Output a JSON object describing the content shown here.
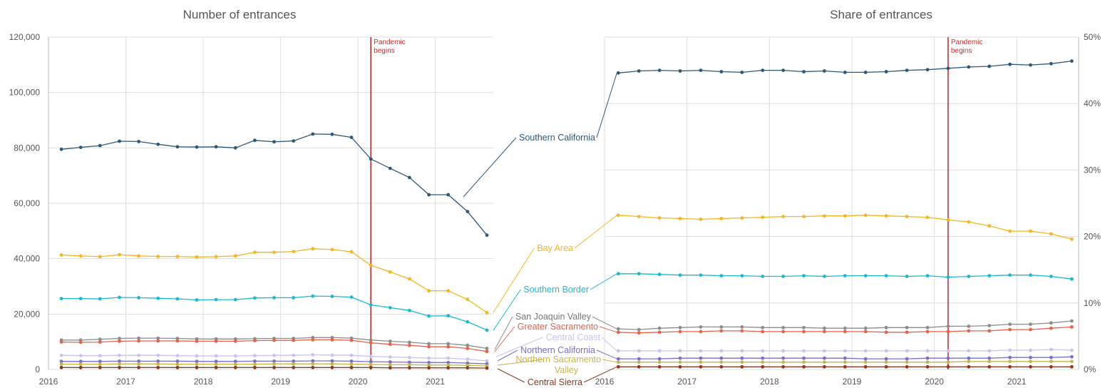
{
  "chart_data": [
    {
      "type": "line",
      "title": "Number of entrances",
      "x_ticks": [
        "2016",
        "2017",
        "2018",
        "2019",
        "2020",
        "2021"
      ],
      "y_ticks": [
        "0",
        "20,000",
        "40,000",
        "60,000",
        "80,000",
        "100,000",
        "120,000"
      ],
      "ylim": [
        0,
        120000
      ],
      "xlim": [
        "2016-01",
        "2021-10"
      ],
      "x": [
        "2016-03",
        "2016-06",
        "2016-09",
        "2016-12",
        "2017-03",
        "2017-06",
        "2017-09",
        "2017-12",
        "2018-03",
        "2018-06",
        "2018-09",
        "2018-12",
        "2019-03",
        "2019-06",
        "2019-09",
        "2019-12",
        "2020-03",
        "2020-06",
        "2020-09",
        "2020-12",
        "2021-03",
        "2021-06",
        "2021-09"
      ],
      "annotation": {
        "text": [
          "Pandemic",
          "begins"
        ],
        "x": "2020-03",
        "color": "#d62728"
      },
      "series": [
        {
          "name": "Southern California",
          "color": "#2d5878",
          "values": [
            79500,
            80200,
            80800,
            82400,
            82300,
            81300,
            80400,
            80300,
            80400,
            80000,
            82700,
            82200,
            82500,
            85000,
            84900,
            83800,
            76000,
            72600,
            69300,
            63100,
            63100,
            57000,
            48500
          ]
        },
        {
          "name": "Bay Area",
          "color": "#f6b521",
          "values": [
            41300,
            41000,
            40700,
            41400,
            41000,
            40800,
            40800,
            40600,
            40700,
            41000,
            42300,
            42300,
            42600,
            43600,
            43300,
            42500,
            37600,
            35200,
            32700,
            28400,
            28400,
            25300,
            20500
          ]
        },
        {
          "name": "Southern Border",
          "color": "#1ab8d2",
          "values": [
            25600,
            25600,
            25500,
            26000,
            25900,
            25700,
            25500,
            25100,
            25200,
            25200,
            25800,
            25900,
            25900,
            26500,
            26400,
            26100,
            23300,
            22300,
            21300,
            19300,
            19400,
            17200,
            14200
          ]
        },
        {
          "name": "San Joaquin Valley",
          "color": "#8c8c8c",
          "values": [
            10600,
            10600,
            10900,
            11200,
            11300,
            11300,
            11200,
            11000,
            11000,
            11000,
            11100,
            11200,
            11200,
            11500,
            11500,
            11300,
            10600,
            10200,
            9800,
            9300,
            9300,
            8700,
            7600
          ]
        },
        {
          "name": "Greater Sacramento",
          "color": "#e8624a",
          "values": [
            9900,
            9800,
            9900,
            10200,
            10300,
            10300,
            10300,
            10200,
            10200,
            10200,
            10400,
            10500,
            10500,
            10700,
            10700,
            10500,
            9600,
            9100,
            8700,
            8200,
            8200,
            7600,
            6500
          ]
        },
        {
          "name": "Central Coast",
          "color": "#c9c2ee",
          "values": [
            5100,
            5000,
            5000,
            5100,
            5100,
            5100,
            5000,
            4900,
            4900,
            4900,
            5000,
            5100,
            5100,
            5300,
            5200,
            5100,
            4700,
            4500,
            4300,
            4100,
            4100,
            3700,
            3100
          ]
        },
        {
          "name": "Northern California",
          "color": "#7a6ec8",
          "values": [
            2900,
            2900,
            2900,
            3000,
            3000,
            3000,
            3000,
            2900,
            2900,
            2900,
            3000,
            3000,
            3000,
            3100,
            3100,
            3000,
            2800,
            2700,
            2600,
            2500,
            2500,
            2300,
            2000
          ]
        },
        {
          "name": "Northern Sacramento Valley",
          "color": "#c9b24a",
          "values": [
            1900,
            1900,
            1900,
            2000,
            2000,
            2000,
            1900,
            1900,
            1900,
            1900,
            1900,
            2000,
            2000,
            2000,
            2000,
            1900,
            1800,
            1700,
            1700,
            1600,
            1600,
            1500,
            1300
          ]
        },
        {
          "name": "Central Sierra",
          "color": "#8b3a1c",
          "values": [
            700,
            700,
            700,
            700,
            700,
            700,
            700,
            700,
            700,
            700,
            700,
            700,
            700,
            700,
            700,
            700,
            700,
            600,
            600,
            600,
            600,
            600,
            500
          ]
        }
      ]
    },
    {
      "type": "line",
      "title": "Share of entrances",
      "x_ticks": [
        "2016",
        "2017",
        "2018",
        "2019",
        "2020",
        "2021"
      ],
      "y_ticks": [
        "0%",
        "10%",
        "20%",
        "30%",
        "40%",
        "50%"
      ],
      "ylim": [
        0,
        50
      ],
      "xlim": [
        "2016-01",
        "2021-10"
      ],
      "x": [
        "2016-03",
        "2016-06",
        "2016-09",
        "2016-12",
        "2017-03",
        "2017-06",
        "2017-09",
        "2017-12",
        "2018-03",
        "2018-06",
        "2018-09",
        "2018-12",
        "2019-03",
        "2019-06",
        "2019-09",
        "2019-12",
        "2020-03",
        "2020-06",
        "2020-09",
        "2020-12",
        "2021-03",
        "2021-06",
        "2021-09"
      ],
      "annotation": {
        "text": [
          "Pandemic",
          "begins"
        ],
        "x": "2020-03",
        "color": "#d62728"
      },
      "series": [
        {
          "name": "Southern California",
          "color": "#2d5878",
          "values": [
            44.6,
            44.9,
            45.0,
            44.9,
            45.0,
            44.8,
            44.7,
            45.0,
            45.0,
            44.8,
            44.9,
            44.7,
            44.7,
            44.8,
            45.0,
            45.1,
            45.3,
            45.5,
            45.6,
            45.9,
            45.8,
            46.0,
            46.4
          ]
        },
        {
          "name": "Bay Area",
          "color": "#f6b521",
          "values": [
            23.2,
            23.0,
            22.8,
            22.7,
            22.6,
            22.7,
            22.8,
            22.9,
            23.0,
            23.0,
            23.1,
            23.1,
            23.2,
            23.1,
            23.0,
            22.9,
            22.5,
            22.2,
            21.6,
            20.8,
            20.8,
            20.4,
            19.6
          ]
        },
        {
          "name": "Southern Border",
          "color": "#1ab8d2",
          "values": [
            14.4,
            14.4,
            14.3,
            14.2,
            14.2,
            14.1,
            14.1,
            14.0,
            14.0,
            14.1,
            14.0,
            14.1,
            14.1,
            14.1,
            14.0,
            14.1,
            13.9,
            14.0,
            14.1,
            14.2,
            14.2,
            14.0,
            13.6
          ]
        },
        {
          "name": "San Joaquin Valley",
          "color": "#8c8c8c",
          "values": [
            6.1,
            6.0,
            6.2,
            6.3,
            6.4,
            6.4,
            6.4,
            6.3,
            6.3,
            6.3,
            6.2,
            6.2,
            6.2,
            6.3,
            6.3,
            6.3,
            6.5,
            6.5,
            6.6,
            6.8,
            6.8,
            7.0,
            7.3
          ]
        },
        {
          "name": "Greater Sacramento",
          "color": "#e8624a",
          "values": [
            5.6,
            5.5,
            5.6,
            5.7,
            5.7,
            5.8,
            5.8,
            5.7,
            5.7,
            5.7,
            5.7,
            5.7,
            5.7,
            5.6,
            5.6,
            5.7,
            5.7,
            5.8,
            5.8,
            6.0,
            6.0,
            6.2,
            6.4
          ]
        },
        {
          "name": "Central Coast",
          "color": "#c9c2ee",
          "values": [
            2.8,
            2.8,
            2.8,
            2.8,
            2.8,
            2.8,
            2.8,
            2.8,
            2.8,
            2.8,
            2.8,
            2.8,
            2.8,
            2.8,
            2.8,
            2.8,
            2.8,
            2.8,
            2.8,
            2.9,
            2.9,
            3.0,
            2.9
          ]
        },
        {
          "name": "Northern California",
          "color": "#7a6ec8",
          "values": [
            1.6,
            1.6,
            1.6,
            1.7,
            1.7,
            1.7,
            1.7,
            1.7,
            1.7,
            1.7,
            1.7,
            1.7,
            1.6,
            1.6,
            1.6,
            1.7,
            1.7,
            1.7,
            1.7,
            1.8,
            1.8,
            1.8,
            1.9
          ]
        },
        {
          "name": "Northern Sacramento Valley",
          "color": "#c9b24a",
          "values": [
            1.1,
            1.1,
            1.1,
            1.1,
            1.1,
            1.1,
            1.1,
            1.1,
            1.1,
            1.1,
            1.1,
            1.1,
            1.1,
            1.1,
            1.1,
            1.1,
            1.1,
            1.2,
            1.2,
            1.2,
            1.2,
            1.2,
            1.2
          ]
        },
        {
          "name": "Central Sierra",
          "color": "#8b3a1c",
          "values": [
            0.4,
            0.4,
            0.4,
            0.4,
            0.4,
            0.4,
            0.4,
            0.4,
            0.4,
            0.4,
            0.4,
            0.4,
            0.4,
            0.4,
            0.4,
            0.4,
            0.4,
            0.4,
            0.4,
            0.4,
            0.4,
            0.4,
            0.4
          ]
        }
      ]
    }
  ],
  "labels": [
    {
      "text": [
        "Southern California"
      ],
      "color": "#2d5878"
    },
    {
      "text": [
        "Bay Area"
      ],
      "color": "#f6b521"
    },
    {
      "text": [
        "Southern Border"
      ],
      "color": "#1ab8d2"
    },
    {
      "text": [
        "San Joaquin Valley"
      ],
      "color": "#777777"
    },
    {
      "text": [
        "Greater Sacramento"
      ],
      "color": "#e8624a"
    },
    {
      "text": [
        "Central Coast"
      ],
      "color": "#c9c2ee"
    },
    {
      "text": [
        "Northern California"
      ],
      "color": "#7a6ec8"
    },
    {
      "text": [
        "Northern Sacramento",
        "Valley"
      ],
      "color": "#c9b24a"
    },
    {
      "text": [
        "Central Sierra"
      ],
      "color": "#8b3a1c"
    }
  ]
}
